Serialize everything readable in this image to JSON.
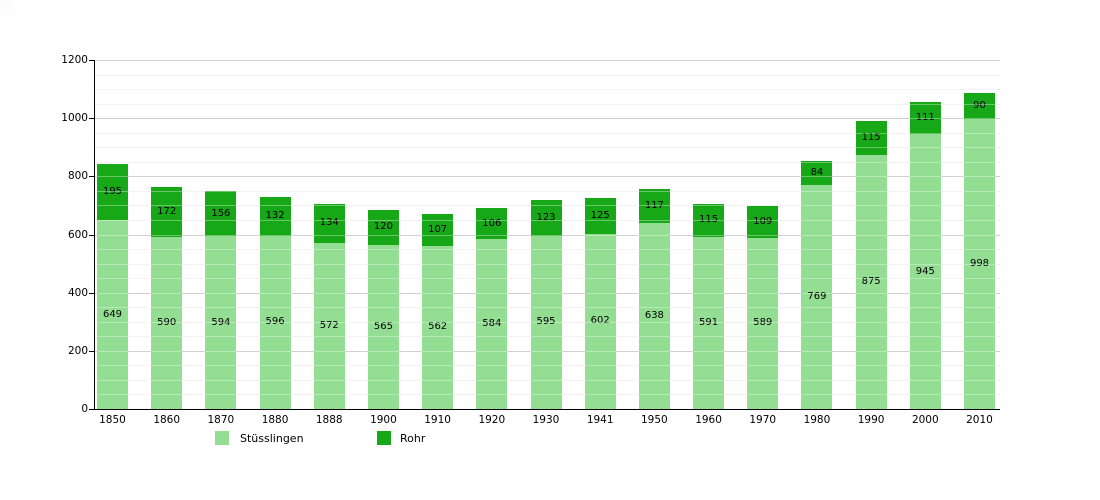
{
  "page": {
    "background": "#ffffff"
  },
  "chart_data": {
    "type": "bar",
    "stacked": true,
    "title": "",
    "xlabel": "",
    "ylabel": "",
    "categories": [
      "1850",
      "1860",
      "1870",
      "1880",
      "1888",
      "1900",
      "1910",
      "1920",
      "1930",
      "1941",
      "1950",
      "1960",
      "1970",
      "1980",
      "1990",
      "2000",
      "2010"
    ],
    "series": [
      {
        "name": "Stüsslingen",
        "color": "#94de94",
        "values": [
          649,
          590,
          594,
          596,
          572,
          565,
          562,
          584,
          595,
          602,
          638,
          591,
          589,
          769,
          875,
          945,
          998
        ]
      },
      {
        "name": "Rohr",
        "color": "#17a817",
        "values": [
          195,
          172,
          156,
          132,
          134,
          120,
          107,
          106,
          123,
          125,
          117,
          115,
          109,
          84,
          115,
          111,
          90
        ]
      }
    ],
    "totals": [
      844,
      762,
      750,
      728,
      706,
      685,
      669,
      690,
      718,
      727,
      755,
      706,
      698,
      853,
      990,
      1056,
      1088
    ],
    "ylim": [
      0,
      1200
    ],
    "yticks": [
      0,
      200,
      400,
      600,
      800,
      1000,
      1200
    ],
    "minor_grid_interval": 50,
    "major_grid_interval": 200,
    "grid": true,
    "value_labels": true,
    "legend_position": "bottom"
  },
  "style": {
    "axis_color": "#000000",
    "major_grid_color": "#b8b8b8",
    "minor_grid_color": "#ececec",
    "grid_overlay_color": "rgba(255,255,255,0.35)",
    "label_text_color": "#000000"
  }
}
